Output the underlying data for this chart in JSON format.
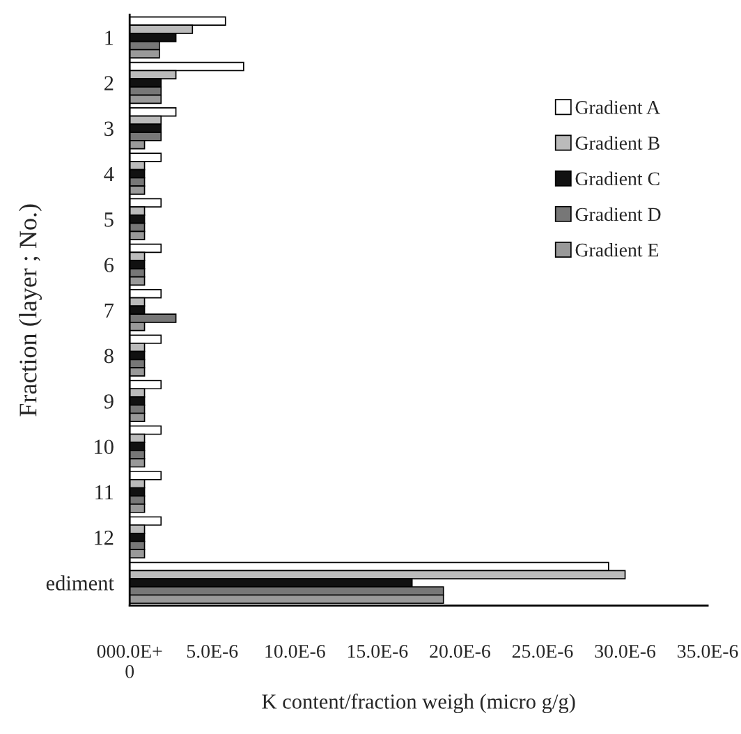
{
  "chart_data": {
    "type": "bar",
    "orientation": "horizontal",
    "categories": [
      "1",
      "2",
      "3",
      "4",
      "5",
      "6",
      "7",
      "8",
      "9",
      "10",
      "11",
      "12",
      "ediment"
    ],
    "series": [
      {
        "name": "Gradient A",
        "color": "#ffffff",
        "values": [
          5.8e-06,
          6.9e-06,
          2.8e-06,
          1.9e-06,
          1.9e-06,
          1.9e-06,
          1.9e-06,
          1.9e-06,
          1.9e-06,
          1.9e-06,
          1.9e-06,
          1.9e-06,
          2.9e-05
        ]
      },
      {
        "name": "Gradient B",
        "color": "#bbbbbb",
        "values": [
          3.8e-06,
          2.8e-06,
          1.9e-06,
          9e-07,
          9e-07,
          9e-07,
          9e-07,
          9e-07,
          9e-07,
          9e-07,
          9e-07,
          9e-07,
          3e-05
        ]
      },
      {
        "name": "Gradient C",
        "color": "#111111",
        "values": [
          2.8e-06,
          1.9e-06,
          1.9e-06,
          9e-07,
          9e-07,
          9e-07,
          9e-07,
          9e-07,
          9e-07,
          9e-07,
          9e-07,
          9e-07,
          1.71e-05
        ]
      },
      {
        "name": "Gradient D",
        "color": "#777777",
        "values": [
          1.8e-06,
          1.9e-06,
          1.9e-06,
          9e-07,
          9e-07,
          9e-07,
          2.8e-06,
          9e-07,
          9e-07,
          9e-07,
          9e-07,
          9e-07,
          1.9e-05
        ]
      },
      {
        "name": "Gradient E",
        "color": "#999999",
        "values": [
          1.8e-06,
          1.9e-06,
          9e-07,
          9e-07,
          9e-07,
          9e-07,
          9e-07,
          9e-07,
          9e-07,
          9e-07,
          9e-07,
          9e-07,
          1.9e-05
        ]
      }
    ],
    "xlim": [
      0,
      3.5e-05
    ],
    "xticks": [
      {
        "value": 0,
        "label": "000.0E+\n0"
      },
      {
        "value": 5e-06,
        "label": "5.0E-6"
      },
      {
        "value": 1e-05,
        "label": "10.0E-6"
      },
      {
        "value": 1.5e-05,
        "label": "15.0E-6"
      },
      {
        "value": 2e-05,
        "label": "20.0E-6"
      },
      {
        "value": 2.5e-05,
        "label": "25.0E-6"
      },
      {
        "value": 3e-05,
        "label": "30.0E-6"
      },
      {
        "value": 3.5e-05,
        "label": "35.0E-6"
      }
    ],
    "xlabel": "K content/fraction weigh (micro g/g)",
    "ylabel": "Fraction (layer ; No.)",
    "legend": "right",
    "grid": false
  }
}
